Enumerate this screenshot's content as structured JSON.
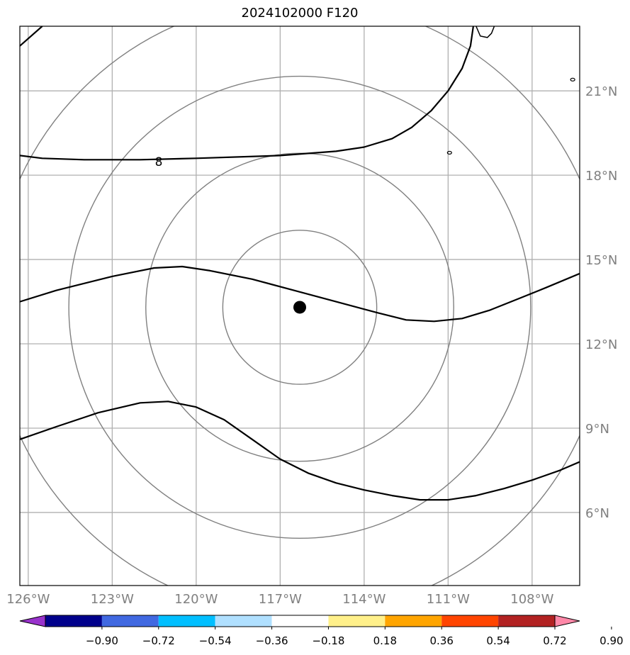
{
  "title": "2024102000 F120",
  "map": {
    "lon_range": [
      -126.3,
      -106.3
    ],
    "lat_range": [
      3.4,
      23.3
    ],
    "grid_lons": [
      -126,
      -123,
      -120,
      -117,
      -114,
      -111,
      -108
    ],
    "grid_lats": [
      6,
      9,
      12,
      15,
      18,
      21
    ],
    "lon_labels": [
      "126°W",
      "123°W",
      "120°W",
      "117°W",
      "114°W",
      "111°W",
      "108°W"
    ],
    "lat_labels": [
      "6°N",
      "9°N",
      "12°N",
      "15°N",
      "18°N",
      "21°N"
    ],
    "storm_center": {
      "lon": -116.3,
      "lat": 13.3
    },
    "range_rings_deg": [
      2.75,
      5.5,
      8.25,
      11.0
    ],
    "contour_label": "8",
    "contour_color": "#000000",
    "grid_color": "#b0b0b0",
    "ring_color": "#808080"
  },
  "colorbar": {
    "tick_labels": [
      "−0.90",
      "−0.72",
      "−0.54",
      "−0.36",
      "−0.18",
      "0.18",
      "0.36",
      "0.54",
      "0.72",
      "0.90"
    ],
    "colors": [
      "#9932cc",
      "#00008b",
      "#4169e1",
      "#00bfff",
      "#b0e0ff",
      "#ffffff",
      "#fff08a",
      "#ffa500",
      "#ff4500",
      "#b22222",
      "#ff88a8"
    ]
  }
}
